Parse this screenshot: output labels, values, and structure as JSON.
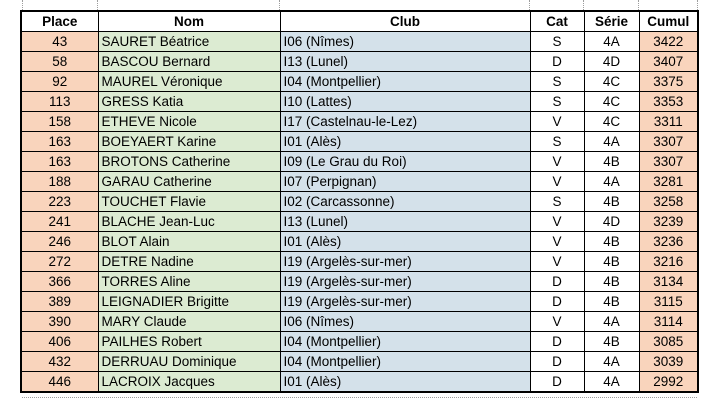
{
  "table": {
    "headers": [
      "Place",
      "Nom",
      "Club",
      "Cat",
      "Série",
      "Cumul"
    ],
    "column_keys": [
      "place",
      "nom",
      "club",
      "cat",
      "serie",
      "cumul"
    ],
    "rows": [
      [
        "43",
        "SAURET Béatrice",
        "I06 (Nîmes)",
        "S",
        "4A",
        "3422"
      ],
      [
        "58",
        "BASCOU Bernard",
        "I13 (Lunel)",
        "D",
        "4D",
        "3407"
      ],
      [
        "92",
        "MAUREL Véronique",
        "I04 (Montpellier)",
        "S",
        "4C",
        "3375"
      ],
      [
        "113",
        "GRESS Katia",
        "I10 (Lattes)",
        "S",
        "4C",
        "3353"
      ],
      [
        "158",
        "ETHEVE Nicole",
        "I17 (Castelnau-le-Lez)",
        "V",
        "4C",
        "3311"
      ],
      [
        "163",
        "BOEYAERT Karine",
        "I01 (Alès)",
        "S",
        "4A",
        "3307"
      ],
      [
        "163",
        "BROTONS Catherine",
        "I09 (Le Grau du Roi)",
        "V",
        "4B",
        "3307"
      ],
      [
        "188",
        "GARAU Catherine",
        "I07 (Perpignan)",
        "V",
        "4A",
        "3281"
      ],
      [
        "223",
        "TOUCHET Flavie",
        "I02 (Carcassonne)",
        "S",
        "4B",
        "3258"
      ],
      [
        "241",
        "BLACHE Jean-Luc",
        "I13 (Lunel)",
        "V",
        "4D",
        "3239"
      ],
      [
        "246",
        "BLOT Alain",
        "I01 (Alès)",
        "V",
        "4B",
        "3236"
      ],
      [
        "272",
        "DETRE Nadine",
        "I19 (Argelès-sur-mer)",
        "V",
        "4B",
        "3216"
      ],
      [
        "366",
        "TORRES Aline",
        "I19 (Argelès-sur-mer)",
        "D",
        "4B",
        "3134"
      ],
      [
        "389",
        "LEIGNADIER Brigitte",
        "I19 (Argelès-sur-mer)",
        "D",
        "4B",
        "3115"
      ],
      [
        "390",
        "MARY Claude",
        "I06 (Nîmes)",
        "V",
        "4A",
        "3114"
      ],
      [
        "406",
        "PAILHES Robert",
        "I04 (Montpellier)",
        "D",
        "4B",
        "3085"
      ],
      [
        "432",
        "DERRUAU Dominique",
        "I04 (Montpellier)",
        "D",
        "4A",
        "3039"
      ],
      [
        "446",
        "LACROIX Jacques",
        "I01 (Alès)",
        "D",
        "4A",
        "2992"
      ]
    ]
  },
  "colors": {
    "place_fill": "#F9D4BC",
    "nom_fill": "#DCEBD2",
    "club_fill": "#D4E1EA",
    "header_fill": "#FFFFFF",
    "border": "#000000",
    "gridline": "#9E9E9E",
    "text": "#000000"
  }
}
